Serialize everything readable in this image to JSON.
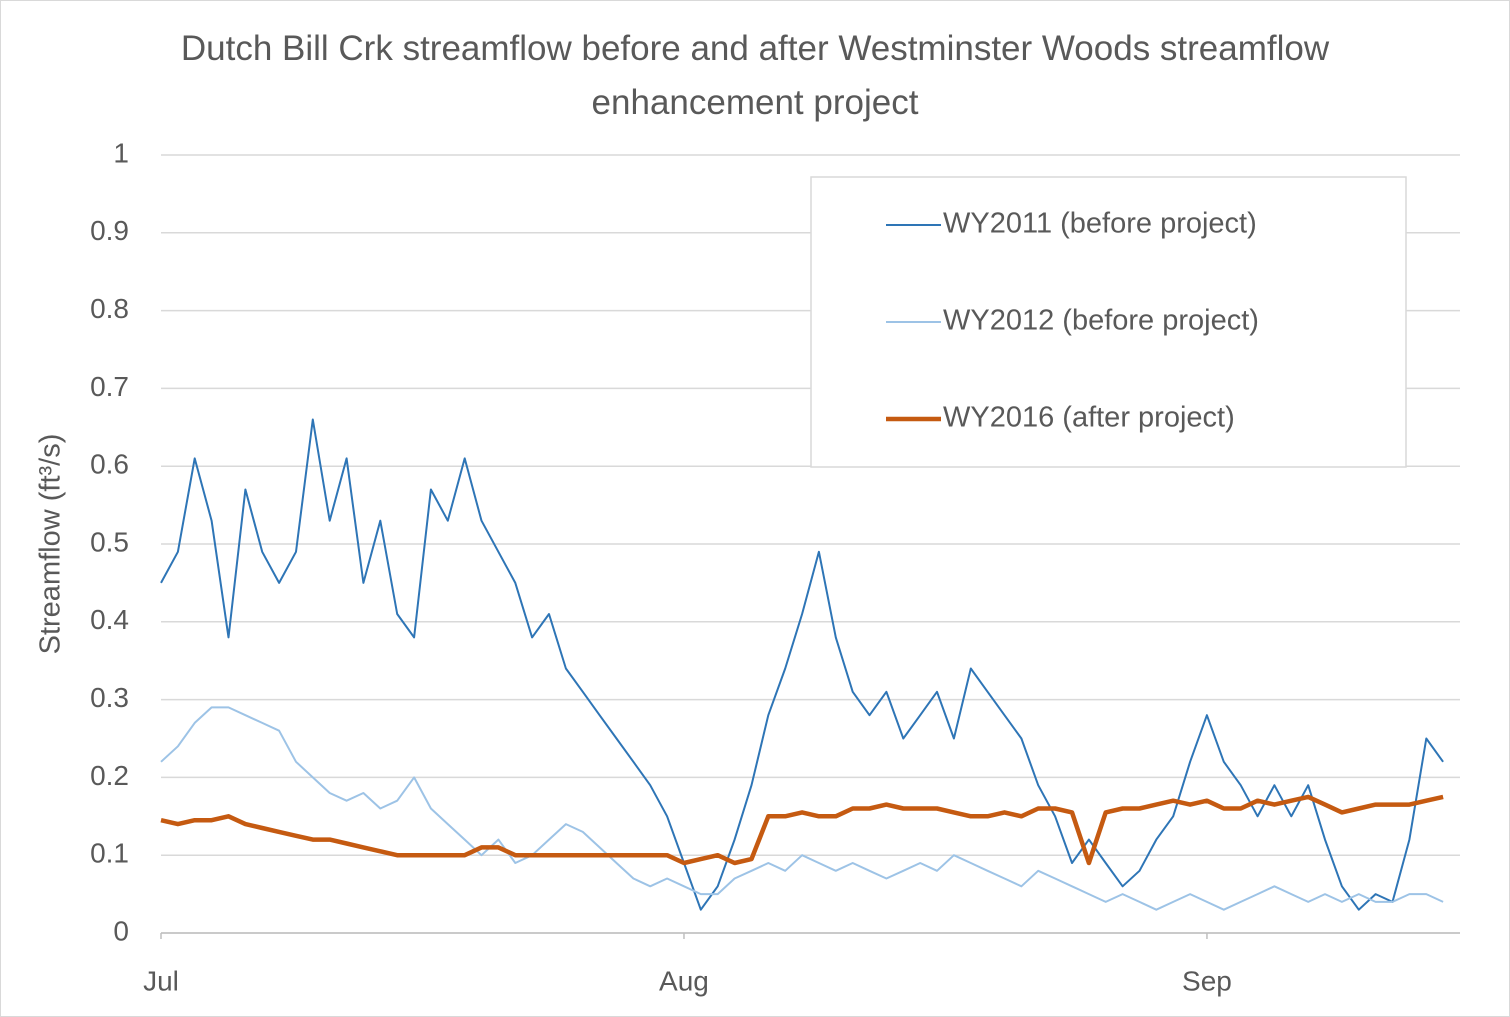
{
  "chart_data": {
    "type": "line",
    "title": "Dutch Bill Crk streamflow before and after Westminster Woods streamflow enhancement project",
    "y_label": "Streamflow (ft³/s)",
    "x": [
      0,
      1,
      2,
      3,
      4,
      5,
      6,
      7,
      8,
      9,
      10,
      11,
      12,
      13,
      14,
      15,
      16,
      17,
      18,
      19,
      20,
      21,
      22,
      23,
      24,
      25,
      26,
      27,
      28,
      29,
      30,
      31,
      32,
      33,
      34,
      35,
      36,
      37,
      38,
      39,
      40,
      41,
      42,
      43,
      44,
      45,
      46,
      47,
      48,
      49,
      50,
      51,
      52,
      53,
      54,
      55,
      56,
      57,
      58,
      59,
      60,
      61,
      62,
      63,
      64,
      65,
      66,
      67,
      68,
      69,
      70,
      71,
      72,
      73,
      74,
      75,
      76
    ],
    "xlim": [
      0,
      77
    ],
    "xticks": [
      {
        "value": 0,
        "label": "Jul"
      },
      {
        "value": 31,
        "label": "Aug"
      },
      {
        "value": 62,
        "label": "Sep"
      }
    ],
    "ylim": [
      0,
      1
    ],
    "yticks": [
      0,
      0.1,
      0.2,
      0.3,
      0.4,
      0.5,
      0.6,
      0.7,
      0.8,
      0.9,
      1
    ],
    "grid": true,
    "legend": "top-right",
    "series": [
      {
        "name": "WY2011 (before project)",
        "color": "#2e75b6",
        "width": 2,
        "values": [
          0.45,
          0.49,
          0.61,
          0.53,
          0.38,
          0.57,
          0.49,
          0.45,
          0.49,
          0.66,
          0.53,
          0.61,
          0.45,
          0.53,
          0.41,
          0.38,
          0.57,
          0.53,
          0.61,
          0.53,
          0.49,
          0.45,
          0.38,
          0.41,
          0.34,
          0.31,
          0.28,
          0.25,
          0.22,
          0.19,
          0.15,
          0.09,
          0.03,
          0.06,
          0.12,
          0.19,
          0.28,
          0.34,
          0.41,
          0.49,
          0.38,
          0.31,
          0.28,
          0.31,
          0.25,
          0.28,
          0.31,
          0.25,
          0.34,
          0.31,
          0.28,
          0.25,
          0.19,
          0.15,
          0.09,
          0.12,
          0.09,
          0.06,
          0.08,
          0.12,
          0.15,
          0.22,
          0.28,
          0.22,
          0.19,
          0.15,
          0.19,
          0.15,
          0.19,
          0.12,
          0.06,
          0.03,
          0.05,
          0.04,
          0.12,
          0.25,
          0.22
        ]
      },
      {
        "name": "WY2012 (before project)",
        "color": "#9dc3e6",
        "width": 2,
        "values": [
          0.22,
          0.24,
          0.27,
          0.29,
          0.29,
          0.28,
          0.27,
          0.26,
          0.22,
          0.2,
          0.18,
          0.17,
          0.18,
          0.16,
          0.17,
          0.2,
          0.16,
          0.14,
          0.12,
          0.1,
          0.12,
          0.09,
          0.1,
          0.12,
          0.14,
          0.13,
          0.11,
          0.09,
          0.07,
          0.06,
          0.07,
          0.06,
          0.05,
          0.05,
          0.07,
          0.08,
          0.09,
          0.08,
          0.1,
          0.09,
          0.08,
          0.09,
          0.08,
          0.07,
          0.08,
          0.09,
          0.08,
          0.1,
          0.09,
          0.08,
          0.07,
          0.06,
          0.08,
          0.07,
          0.06,
          0.05,
          0.04,
          0.05,
          0.04,
          0.03,
          0.04,
          0.05,
          0.04,
          0.03,
          0.04,
          0.05,
          0.06,
          0.05,
          0.04,
          0.05,
          0.04,
          0.05,
          0.04,
          0.04,
          0.05,
          0.05,
          0.04
        ]
      },
      {
        "name": "WY2016 (after project)",
        "color": "#c55a11",
        "width": 4.5,
        "values": [
          0.145,
          0.14,
          0.145,
          0.145,
          0.15,
          0.14,
          0.135,
          0.13,
          0.125,
          0.12,
          0.12,
          0.115,
          0.11,
          0.105,
          0.1,
          0.1,
          0.1,
          0.1,
          0.1,
          0.11,
          0.11,
          0.1,
          0.1,
          0.1,
          0.1,
          0.1,
          0.1,
          0.1,
          0.1,
          0.1,
          0.1,
          0.09,
          0.095,
          0.1,
          0.09,
          0.095,
          0.15,
          0.15,
          0.155,
          0.15,
          0.15,
          0.16,
          0.16,
          0.165,
          0.16,
          0.16,
          0.16,
          0.155,
          0.15,
          0.15,
          0.155,
          0.15,
          0.16,
          0.16,
          0.155,
          0.09,
          0.155,
          0.16,
          0.16,
          0.165,
          0.17,
          0.165,
          0.17,
          0.16,
          0.16,
          0.17,
          0.165,
          0.17,
          0.175,
          0.165,
          0.155,
          0.16,
          0.165,
          0.165,
          0.165,
          0.17,
          0.175
        ]
      }
    ]
  }
}
